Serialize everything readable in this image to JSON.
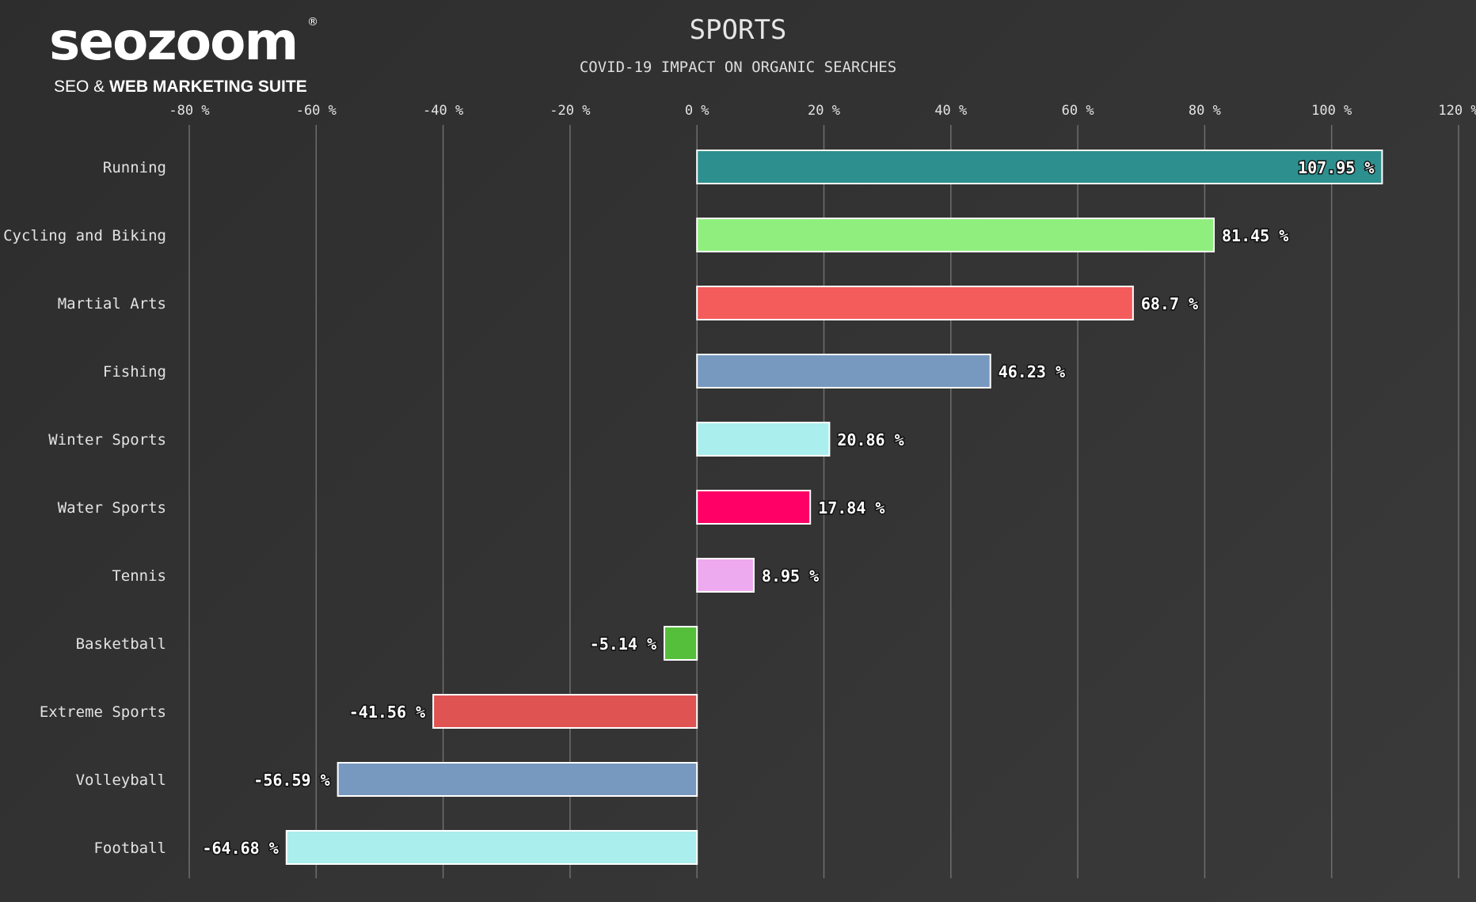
{
  "logo": {
    "word": "seozoom",
    "reg": "®",
    "tag_light": "SEO &",
    "tag_bold": "WEB MARKETING SUITE"
  },
  "chart_data": {
    "type": "bar",
    "orientation": "horizontal",
    "title": "SPORTS",
    "subtitle": "COVID-19 IMPACT ON ORGANIC SEARCHES",
    "xlabel": "",
    "ylabel": "",
    "xlim": [
      -80,
      120
    ],
    "x_ticks": [
      -80,
      -60,
      -40,
      -20,
      0,
      20,
      40,
      60,
      80,
      100,
      120
    ],
    "x_tick_labels": [
      "-80 %",
      "-60 %",
      "-40 %",
      "-20 %",
      "0 %",
      "20 %",
      "40 %",
      "60 %",
      "80 %",
      "100 %",
      "120 %"
    ],
    "grid": true,
    "categories": [
      "Running",
      "Cycling and Biking",
      "Martial Arts",
      "Fishing",
      "Winter Sports",
      "Water Sports",
      "Tennis",
      "Basketball",
      "Extreme Sports",
      "Volleyball",
      "Football"
    ],
    "values": [
      107.95,
      81.45,
      68.7,
      46.23,
      20.86,
      17.84,
      8.95,
      -5.14,
      -41.56,
      -56.59,
      -64.68
    ],
    "value_labels": [
      "107.95 %",
      "81.45 %",
      "68.7 %",
      "46.23 %",
      "20.86 %",
      "17.84 %",
      "8.95 %",
      "-5.14 %",
      "-41.56 %",
      "-56.59 %",
      "-64.68 %"
    ],
    "colors": [
      "#2e8f8f",
      "#90ee7e",
      "#f45b5b",
      "#7798bf",
      "#aaeeee",
      "#ff0066",
      "#eeaaee",
      "#55bf3b",
      "#df5353",
      "#7798bf",
      "#aaeeee"
    ]
  }
}
